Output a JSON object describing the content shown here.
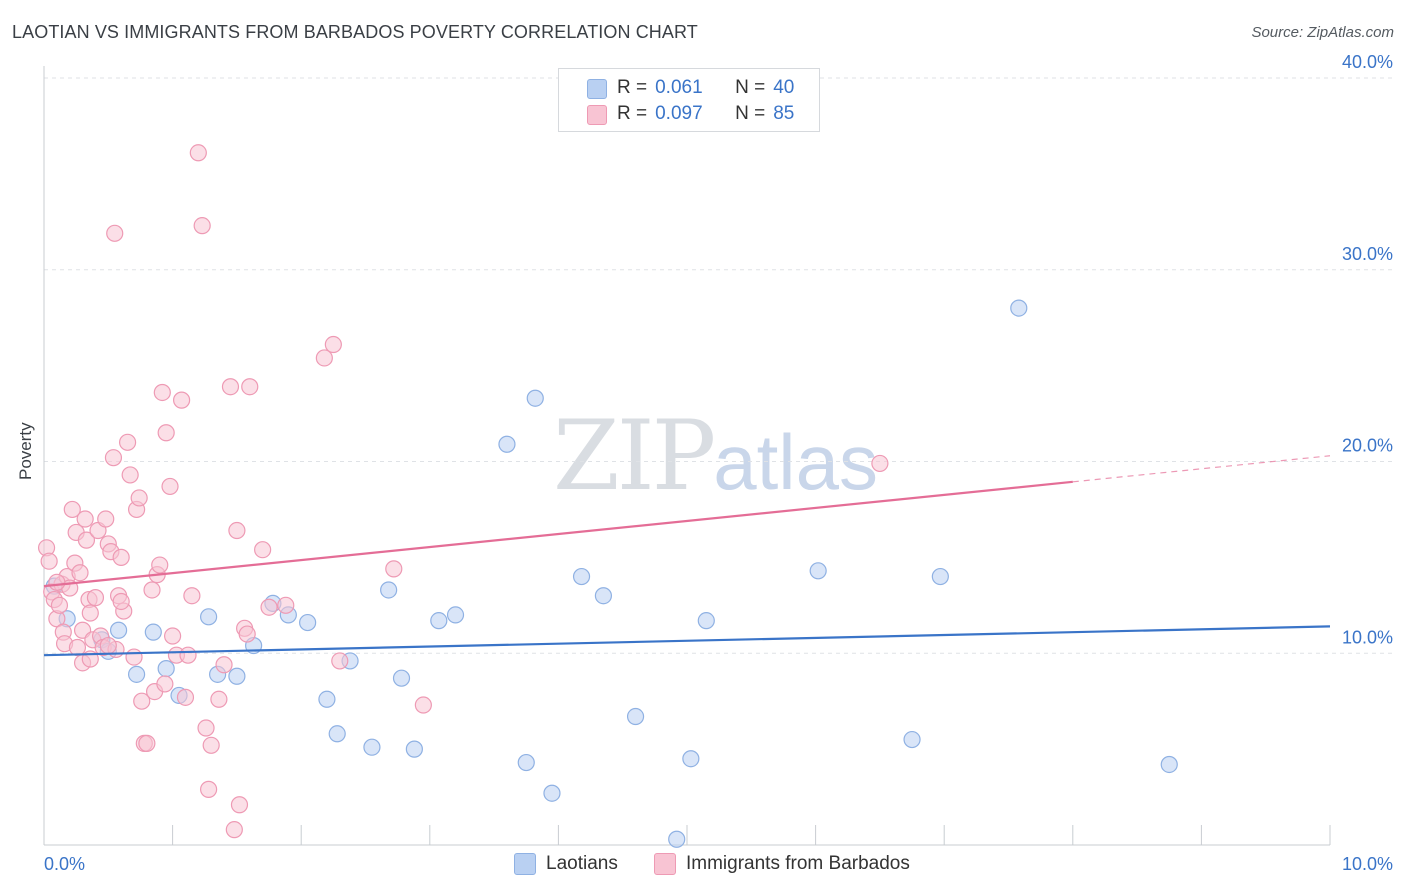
{
  "header": {
    "title": "LAOTIAN VS IMMIGRANTS FROM BARBADOS POVERTY CORRELATION CHART",
    "source": "Source: ZipAtlas.com"
  },
  "watermark": {
    "zip": "ZIP",
    "atlas": "atlas"
  },
  "legend": {
    "rows": [
      {
        "r_label": "R =",
        "r_value": "0.061",
        "n_label": "N =",
        "n_value": "40"
      },
      {
        "r_label": "R =",
        "r_value": "0.097",
        "n_label": "N =",
        "n_value": "85"
      }
    ]
  },
  "bottom_legend": {
    "series1": "Laotians",
    "series2": "Immigrants from Barbados"
  },
  "colors": {
    "series1_fill": "#b9d0f2",
    "series1_stroke": "#8fb1e3",
    "series1_line": "#3a74c8",
    "series2_fill": "#f8c4d3",
    "series2_stroke": "#ee9ab4",
    "series2_line": "#e46d96",
    "grid": "#dfe2e6",
    "tick_text": "#3a74c8"
  },
  "chart_data": {
    "type": "scatter",
    "title": "LAOTIAN VS IMMIGRANTS FROM BARBADOS POVERTY CORRELATION CHART",
    "xlabel": "",
    "ylabel": "Poverty",
    "xlim": [
      0,
      10
    ],
    "ylim": [
      0,
      40
    ],
    "x_tick_labels": [
      "0.0%",
      "10.0%"
    ],
    "y_ticks": [
      10,
      20,
      30,
      40
    ],
    "y_tick_labels": [
      "10.0%",
      "20.0%",
      "30.0%",
      "40.0%"
    ],
    "grid": true,
    "series": [
      {
        "name": "Laotians",
        "r": 0.061,
        "n": 40,
        "trend": {
          "x0": 0,
          "y0": 9.9,
          "x1": 10,
          "y1": 11.4,
          "dashed_from": null
        },
        "points": [
          [
            0.08,
            13.5
          ],
          [
            0.18,
            11.8
          ],
          [
            0.45,
            10.7
          ],
          [
            0.5,
            10.1
          ],
          [
            0.58,
            11.2
          ],
          [
            0.72,
            8.9
          ],
          [
            0.85,
            11.1
          ],
          [
            0.95,
            9.2
          ],
          [
            1.05,
            7.8
          ],
          [
            1.28,
            11.9
          ],
          [
            1.35,
            8.9
          ],
          [
            1.5,
            8.8
          ],
          [
            1.63,
            10.4
          ],
          [
            1.78,
            12.6
          ],
          [
            1.9,
            12.0
          ],
          [
            2.05,
            11.6
          ],
          [
            2.2,
            7.6
          ],
          [
            2.28,
            5.8
          ],
          [
            2.38,
            9.6
          ],
          [
            2.55,
            5.1
          ],
          [
            2.68,
            13.3
          ],
          [
            2.78,
            8.7
          ],
          [
            2.88,
            5.0
          ],
          [
            3.07,
            11.7
          ],
          [
            3.2,
            12.0
          ],
          [
            3.6,
            20.9
          ],
          [
            3.75,
            4.3
          ],
          [
            3.82,
            23.3
          ],
          [
            3.95,
            2.7
          ],
          [
            4.18,
            14.0
          ],
          [
            4.35,
            13.0
          ],
          [
            4.6,
            6.7
          ],
          [
            4.92,
            0.3
          ],
          [
            5.03,
            4.5
          ],
          [
            5.15,
            11.7
          ],
          [
            6.02,
            14.3
          ],
          [
            6.97,
            14.0
          ],
          [
            6.75,
            5.5
          ],
          [
            7.58,
            28.0
          ],
          [
            8.75,
            4.2
          ]
        ]
      },
      {
        "name": "Immigrants from Barbados",
        "r": 0.097,
        "n": 85,
        "trend": {
          "x0": 0,
          "y0": 13.5,
          "x1": 10,
          "y1": 20.3,
          "dashed_from": 8.0
        },
        "points": [
          [
            0.02,
            15.5
          ],
          [
            0.04,
            14.8
          ],
          [
            0.06,
            13.2
          ],
          [
            0.08,
            12.8
          ],
          [
            0.1,
            11.8
          ],
          [
            0.12,
            12.5
          ],
          [
            0.14,
            13.6
          ],
          [
            0.15,
            11.1
          ],
          [
            0.16,
            10.5
          ],
          [
            0.18,
            14.0
          ],
          [
            0.2,
            13.4
          ],
          [
            0.22,
            17.5
          ],
          [
            0.24,
            14.7
          ],
          [
            0.25,
            16.3
          ],
          [
            0.28,
            14.2
          ],
          [
            0.3,
            11.2
          ],
          [
            0.32,
            17.0
          ],
          [
            0.3,
            9.5
          ],
          [
            0.33,
            15.9
          ],
          [
            0.35,
            12.8
          ],
          [
            0.36,
            12.1
          ],
          [
            0.38,
            10.7
          ],
          [
            0.4,
            12.9
          ],
          [
            0.42,
            16.4
          ],
          [
            0.44,
            10.9
          ],
          [
            0.46,
            10.3
          ],
          [
            0.48,
            17.0
          ],
          [
            0.5,
            15.7
          ],
          [
            0.52,
            15.3
          ],
          [
            0.54,
            20.2
          ],
          [
            0.55,
            31.9
          ],
          [
            0.56,
            10.2
          ],
          [
            0.58,
            13.0
          ],
          [
            0.6,
            15.0
          ],
          [
            0.62,
            12.2
          ],
          [
            0.65,
            21.0
          ],
          [
            0.67,
            19.3
          ],
          [
            0.7,
            9.8
          ],
          [
            0.72,
            17.5
          ],
          [
            0.74,
            18.1
          ],
          [
            0.76,
            7.5
          ],
          [
            0.78,
            5.3
          ],
          [
            0.8,
            5.3
          ],
          [
            0.84,
            13.3
          ],
          [
            0.86,
            8.0
          ],
          [
            0.88,
            14.1
          ],
          [
            0.9,
            14.6
          ],
          [
            0.92,
            23.6
          ],
          [
            0.94,
            8.4
          ],
          [
            0.95,
            21.5
          ],
          [
            0.98,
            18.7
          ],
          [
            1.0,
            10.9
          ],
          [
            1.03,
            9.9
          ],
          [
            1.07,
            23.2
          ],
          [
            1.1,
            7.7
          ],
          [
            1.12,
            9.9
          ],
          [
            1.15,
            13.0
          ],
          [
            1.2,
            36.1
          ],
          [
            1.23,
            32.3
          ],
          [
            1.26,
            6.1
          ],
          [
            1.28,
            2.9
          ],
          [
            1.3,
            5.2
          ],
          [
            1.36,
            7.6
          ],
          [
            1.4,
            9.4
          ],
          [
            1.45,
            23.9
          ],
          [
            1.48,
            0.8
          ],
          [
            1.5,
            16.4
          ],
          [
            1.52,
            2.1
          ],
          [
            1.56,
            11.3
          ],
          [
            1.58,
            11.0
          ],
          [
            1.6,
            23.9
          ],
          [
            1.7,
            15.4
          ],
          [
            1.75,
            12.4
          ],
          [
            1.88,
            12.5
          ],
          [
            2.18,
            25.4
          ],
          [
            2.25,
            26.1
          ],
          [
            2.3,
            9.6
          ],
          [
            2.72,
            14.4
          ],
          [
            2.95,
            7.3
          ],
          [
            6.5,
            19.9
          ],
          [
            0.5,
            10.4
          ],
          [
            0.6,
            12.7
          ],
          [
            0.36,
            9.7
          ],
          [
            0.1,
            13.7
          ],
          [
            0.26,
            10.3
          ]
        ]
      }
    ]
  }
}
